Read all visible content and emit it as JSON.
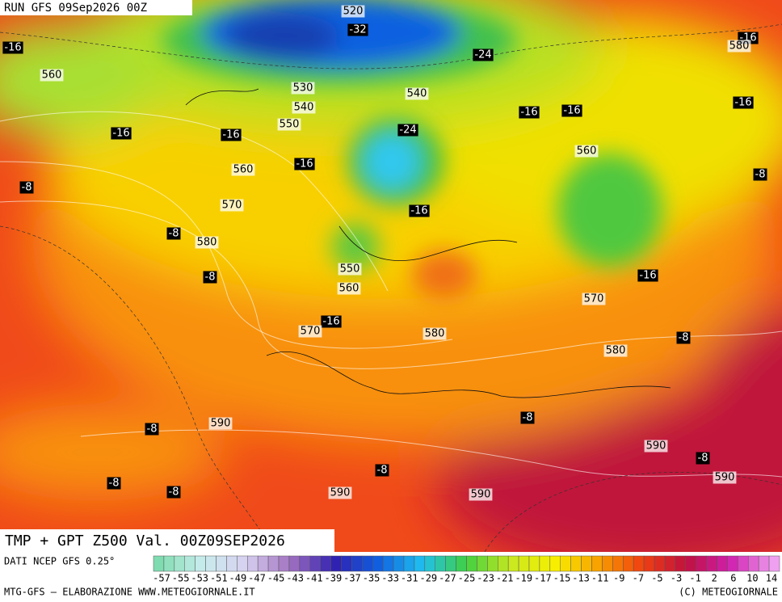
{
  "header": {
    "run": "RUN GFS 09Sep2026 00Z"
  },
  "map": {
    "contour_labels": [
      520,
      -32,
      -24,
      -16,
      560,
      530,
      540,
      540,
      -16,
      -16,
      550,
      -24,
      -16,
      -16,
      -16,
      580,
      -16,
      560,
      -16,
      560,
      -8,
      -8,
      570,
      -16,
      -8,
      580,
      -8,
      550,
      560,
      -16,
      570,
      -16,
      570,
      580,
      -8,
      580,
      -8,
      590,
      -8,
      590,
      -8,
      -8,
      590,
      -8,
      -8,
      590,
      590
    ]
  },
  "footer": {
    "title": "TMP + GPT Z500 Val. 00Z09SEP2026",
    "source": "DATI NCEP GFS 0.25°",
    "credit": "MTG-GFS — ELABORAZIONE WWW.METEOGIORNALE.IT",
    "copyright": "(C) METEOGIORNALE"
  },
  "colorbar": {
    "labels": [
      -57,
      -55,
      -53,
      -51,
      -49,
      -47,
      -45,
      -43,
      -41,
      -39,
      -37,
      -35,
      -33,
      -31,
      -29,
      -27,
      -25,
      -23,
      -21,
      -19,
      -17,
      -15,
      -13,
      -11,
      -9,
      -7,
      -5,
      -3,
      -1,
      2,
      6,
      10,
      14
    ],
    "stops": [
      "#7fdcb0",
      "#c8ecec",
      "#d8d0f0",
      "#a070c0",
      "#3020b0",
      "#1060e0",
      "#20c0f0",
      "#40d040",
      "#c8e820",
      "#f8f000",
      "#f8a000",
      "#f04010",
      "#c01040",
      "#d020b0",
      "#f0a0f0"
    ]
  }
}
